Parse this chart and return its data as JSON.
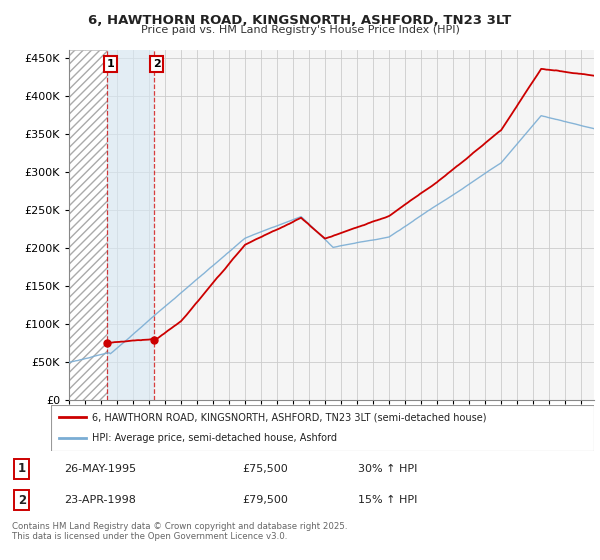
{
  "title": "6, HAWTHORN ROAD, KINGSNORTH, ASHFORD, TN23 3LT",
  "subtitle": "Price paid vs. HM Land Registry's House Price Index (HPI)",
  "legend_label_red": "6, HAWTHORN ROAD, KINGSNORTH, ASHFORD, TN23 3LT (semi-detached house)",
  "legend_label_blue": "HPI: Average price, semi-detached house, Ashford",
  "sale1_label": "1",
  "sale1_date": "26-MAY-1995",
  "sale1_price": "£75,500",
  "sale1_hpi": "30% ↑ HPI",
  "sale1_x": 1995.38,
  "sale1_y": 75500,
  "sale2_label": "2",
  "sale2_date": "23-APR-1998",
  "sale2_price": "£79,500",
  "sale2_hpi": "15% ↑ HPI",
  "sale2_x": 1998.29,
  "sale2_y": 79500,
  "footer": "Contains HM Land Registry data © Crown copyright and database right 2025.\nThis data is licensed under the Open Government Licence v3.0.",
  "red_color": "#cc0000",
  "blue_color": "#7aadd4",
  "grid_color": "#cccccc",
  "bg_color": "#f5f5f5",
  "hatch_region_color": "#e8eef4",
  "between_region_color": "#e4eef7",
  "ylim": [
    0,
    460000
  ],
  "xlim_start": 1993.0,
  "xlim_end": 2025.8
}
